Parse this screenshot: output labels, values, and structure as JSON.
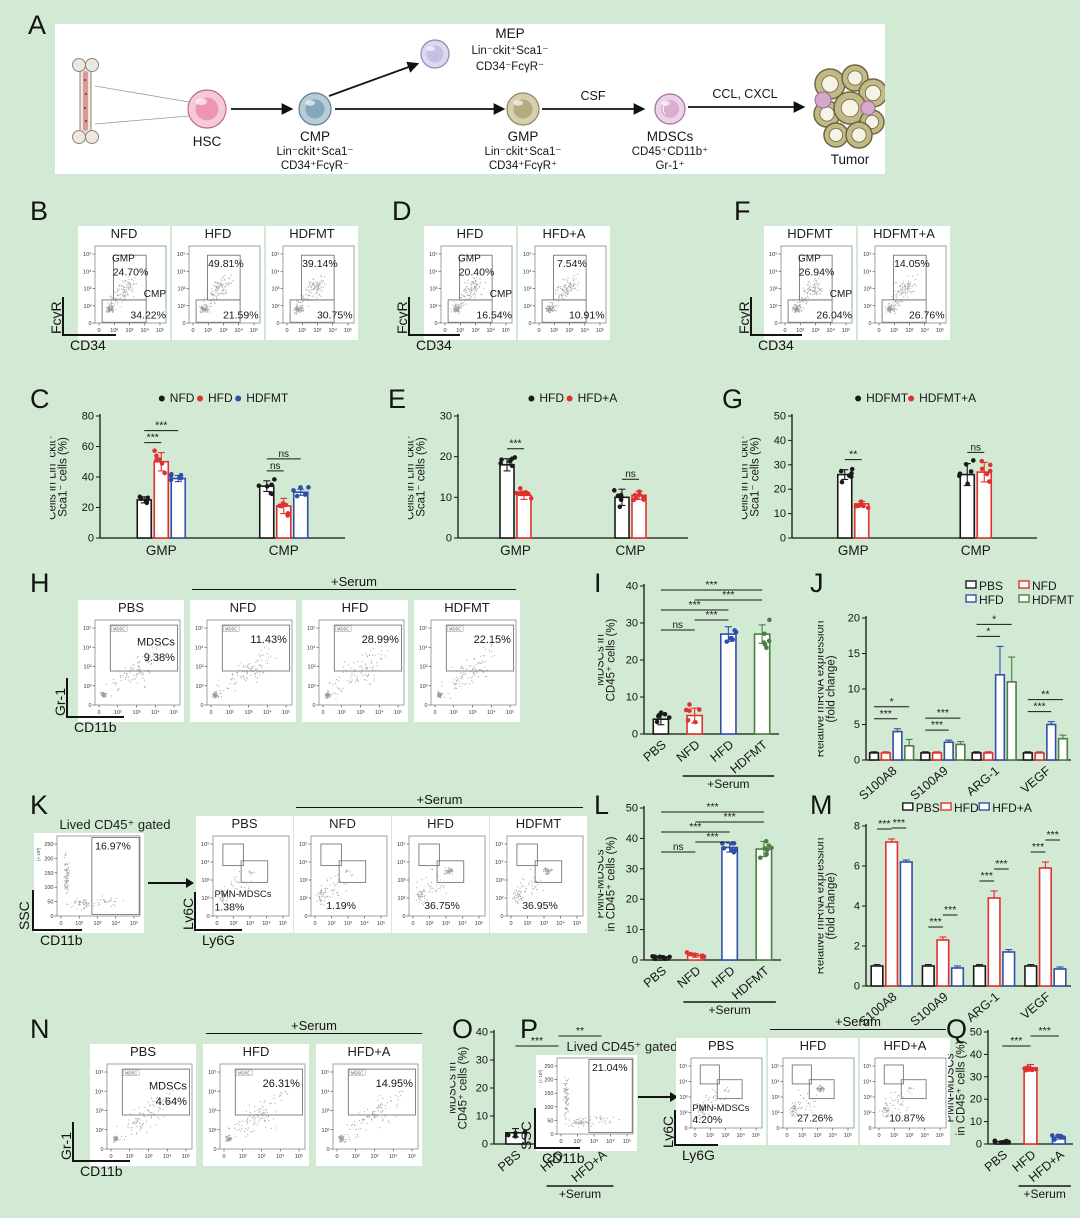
{
  "colors": {
    "black": "#1a1a1a",
    "red": "#e0312e",
    "blue": "#2f4faa",
    "green": "#4a8042"
  },
  "ticks_log": [
    "0",
    "10²",
    "10³",
    "10⁴",
    "10⁵"
  ],
  "ticks_ssc": [
    "0",
    "50",
    "100",
    "150",
    "200",
    "250"
  ],
  "panels": {
    "A": {
      "letter": "A",
      "hsc": "HSC",
      "cmp_name": "CMP",
      "cmp_sub1": "Lin⁻ckit⁺Sca1⁻",
      "cmp_sub2": "CD34⁺FcγR⁻",
      "mep_name": "MEP",
      "mep_sub1": "Lin⁻ckit⁺Sca1⁻",
      "mep_sub2": "CD34⁻FcγR⁻",
      "gmp_name": "GMP",
      "gmp_sub1": "Lin⁻ckit⁺Sca1⁻",
      "gmp_sub2": "CD34⁺FcγR⁺",
      "mdsc_name": "MDSCs",
      "mdsc_sub1": "CD45⁺CD11b⁺",
      "mdsc_sub2": "Gr-1⁺",
      "tumor": "Tumor",
      "csf": "CSF",
      "ccl": "CCL, CXCL"
    },
    "B": {
      "letter": "B",
      "ylabel": "FcγR",
      "xlabel": "CD34",
      "plots": [
        {
          "title": "NFD",
          "names": true,
          "g1": "GMP",
          "p1": "24.70%",
          "g2": "CMP",
          "p2": "34.22%"
        },
        {
          "title": "HFD",
          "p1": "49.81%",
          "p2": "21.59%"
        },
        {
          "title": "HDFMT",
          "p1": "39.14%",
          "p2": "30.75%"
        }
      ]
    },
    "C": {
      "letter": "C",
      "chart": {
        "type": "grouped",
        "ml": 50,
        "ylabel": [
          "Cells in Lin⁻ckit⁺",
          "Sca1⁻ cells (%)"
        ],
        "ylim": 80,
        "yticks": [
          0,
          20,
          40,
          60,
          80
        ],
        "categories": [
          "GMP",
          "CMP"
        ],
        "series": [
          {
            "name": "NFD",
            "color": "black",
            "values": [
              25,
              34
            ],
            "errors": [
              2,
              3.5
            ]
          },
          {
            "name": "HFD",
            "color": "red",
            "values": [
              50,
              21
            ],
            "errors": [
              6,
              5
            ]
          },
          {
            "name": "HDFMT",
            "color": "blue",
            "values": [
              39,
              30
            ],
            "errors": [
              2,
              2
            ]
          }
        ],
        "legend": "dot",
        "dots": 6,
        "sig": [
          {
            "cat": 0,
            "from": 0,
            "to": 1,
            "level": 0,
            "label": "***"
          },
          {
            "cat": 0,
            "from": 0,
            "to": 2,
            "level": 1,
            "label": "***"
          },
          {
            "cat": 1,
            "from": 0,
            "to": 1,
            "level": 0,
            "label": "ns"
          },
          {
            "cat": 1,
            "from": 0,
            "to": 2,
            "level": 1,
            "label": "ns"
          }
        ]
      }
    },
    "D": {
      "letter": "D",
      "ylabel": "FcγR",
      "xlabel": "CD34",
      "plots": [
        {
          "title": "HFD",
          "names": true,
          "g1": "GMP",
          "p1": "20.40%",
          "g2": "CMP",
          "p2": "16.54%"
        },
        {
          "title": "HFD+A",
          "p1": "7.54%",
          "p2": "10.91%"
        }
      ]
    },
    "E": {
      "letter": "E",
      "chart": {
        "type": "grouped",
        "ml": 50,
        "ylabel": [
          "Cells in Lin⁻ckit⁺",
          "Sca1⁻ cells (%)"
        ],
        "ylim": 30,
        "yticks": [
          0,
          10,
          20,
          30
        ],
        "categories": [
          "GMP",
          "CMP"
        ],
        "series": [
          {
            "name": "HFD",
            "color": "black",
            "values": [
              18,
              10
            ],
            "errors": [
              1.5,
              2
            ]
          },
          {
            "name": "HFD+A",
            "color": "red",
            "values": [
              10.5,
              10.5
            ],
            "errors": [
              1,
              1
            ]
          }
        ],
        "legend": "dot",
        "dots": 7,
        "sig": [
          {
            "cat": 0,
            "from": 0,
            "to": 1,
            "level": 0,
            "label": "***"
          },
          {
            "cat": 1,
            "from": 0,
            "to": 1,
            "level": 0,
            "label": "ns"
          }
        ]
      }
    },
    "F": {
      "letter": "F",
      "ylabel": "FcγR",
      "xlabel": "CD34",
      "plots": [
        {
          "title": "HDFMT",
          "names": true,
          "g1": "GMP",
          "p1": "26.94%",
          "g2": "CMP",
          "p2": "26.04%"
        },
        {
          "title": "HDFMT+A",
          "p1": "14.05%",
          "p2": "26.76%"
        }
      ]
    },
    "G": {
      "letter": "G",
      "chart": {
        "type": "grouped",
        "ml": 50,
        "ylabel": [
          "Cells in Lin⁻ckit⁺",
          "Sca1⁻ cells (%)"
        ],
        "ylim": 50,
        "yticks": [
          0,
          10,
          20,
          30,
          40,
          50
        ],
        "categories": [
          "GMP",
          "CMP"
        ],
        "series": [
          {
            "name": "HDFMT",
            "color": "black",
            "values": [
              26,
              26
            ],
            "errors": [
              2,
              4.5
            ]
          },
          {
            "name": "HDFMT+A",
            "color": "red",
            "values": [
              14,
              27
            ],
            "errors": [
              1,
              4
            ]
          }
        ],
        "legend": "dot",
        "dots": 6,
        "sig": [
          {
            "cat": 0,
            "from": 0,
            "to": 1,
            "level": 0,
            "label": "**"
          },
          {
            "cat": 1,
            "from": 0,
            "to": 1,
            "level": 0,
            "label": "ns"
          }
        ]
      }
    },
    "H": {
      "letter": "H",
      "serum": "+Serum",
      "ylabel": "Gr-1",
      "xlabel": "CD11b",
      "plots": [
        {
          "title": "PBS",
          "names": true,
          "name": "MDSCs",
          "tag": "MDSC",
          "pct": "9.38%"
        },
        {
          "title": "NFD",
          "tag": "MDSC",
          "pct": "11.43%"
        },
        {
          "title": "HFD",
          "tag": "MDSC",
          "pct": "28.99%"
        },
        {
          "title": "HDFMT",
          "tag": "MDSC",
          "pct": "22.15%"
        }
      ]
    },
    "I": {
      "letter": "I",
      "chart": {
        "type": "simple",
        "ml": 46,
        "ylabel": [
          "MDSCs in",
          "CD45⁺ cells (%)"
        ],
        "ylim": 40,
        "yticks": [
          0,
          10,
          20,
          30,
          40
        ],
        "categories": [
          "PBS",
          "NFD",
          "HFD",
          "HDFMT"
        ],
        "colors": [
          "black",
          "red",
          "blue",
          "green"
        ],
        "values": [
          4,
          5,
          27,
          27
        ],
        "errors": [
          1.5,
          2,
          2,
          2.5
        ],
        "dots": 6,
        "rotate": true,
        "serum": {
          "label": "+Serum",
          "from": 1,
          "to": 3
        },
        "sig": [
          {
            "from": 0,
            "to": 1,
            "level": 0,
            "label": "ns"
          },
          {
            "from": 1,
            "to": 2,
            "level": 1,
            "label": "***"
          },
          {
            "from": 0,
            "to": 2,
            "level": 2,
            "label": "***"
          },
          {
            "from": 1,
            "to": 3,
            "level": 3,
            "label": "***"
          },
          {
            "from": 0,
            "to": 3,
            "level": 4,
            "label": "***"
          }
        ]
      }
    },
    "J": {
      "letter": "J",
      "chart": {
        "type": "grouped",
        "ml": 48,
        "ylabel": [
          "Relative mRNA expression",
          "(fold change)"
        ],
        "ylim": 20,
        "yticks": [
          0,
          5,
          10,
          15,
          20
        ],
        "categories": [
          "S100A8",
          "S100A9",
          "ARG-1",
          "VEGF"
        ],
        "rotate": true,
        "series": [
          {
            "name": "PBS",
            "color": "black",
            "values": [
              1,
              1,
              1,
              1
            ],
            "errors": [
              0.15,
              0.15,
              0.15,
              0.15
            ]
          },
          {
            "name": "NFD",
            "color": "red",
            "values": [
              1,
              1,
              1,
              1
            ],
            "errors": [
              0.15,
              0.15,
              0.15,
              0.15
            ]
          },
          {
            "name": "HFD",
            "color": "blue",
            "values": [
              4,
              2.5,
              12,
              5
            ],
            "errors": [
              0.4,
              0.3,
              4,
              0.4
            ]
          },
          {
            "name": "HDFMT",
            "color": "green",
            "values": [
              2,
              2.2,
              11,
              3
            ],
            "errors": [
              0.9,
              0.4,
              3.5,
              0.5
            ]
          }
        ],
        "legend": "rect",
        "legend_cols": 2,
        "legend_align": "right",
        "dots": 0,
        "sig": [
          {
            "cat": 0,
            "from": 0,
            "to": 2,
            "level": 0,
            "label": "***"
          },
          {
            "cat": 0,
            "from": 0,
            "to": 3,
            "level": 1,
            "label": "*"
          },
          {
            "cat": 1,
            "from": 0,
            "to": 2,
            "level": 0,
            "label": "***"
          },
          {
            "cat": 1,
            "from": 0,
            "to": 3,
            "level": 1,
            "label": "***"
          },
          {
            "cat": 2,
            "from": 0,
            "to": 2,
            "level": 0,
            "label": "*"
          },
          {
            "cat": 2,
            "from": 0,
            "to": 3,
            "level": 1,
            "label": "*"
          },
          {
            "cat": 3,
            "from": 0,
            "to": 2,
            "level": 0,
            "label": "***"
          },
          {
            "cat": 3,
            "from": 0,
            "to": 3,
            "level": 1,
            "label": "**"
          }
        ]
      }
    },
    "K": {
      "letter": "K",
      "serum": "+Serum",
      "gate_title": "Lived CD45⁺ gated",
      "ssc_ylabel": "SSC",
      "ssc_xlabel": "CD11b",
      "ylabel": "Ly6C",
      "xlabel": "Ly6G",
      "lived": {
        "pct": "16.97%",
        "unit": "(× 10³)"
      },
      "plots": [
        {
          "title": "PBS",
          "names": true,
          "name": "PMN-MDSCs",
          "pct": "1.38%"
        },
        {
          "title": "NFD",
          "pct": "1.19%"
        },
        {
          "title": "HFD",
          "pct": "36.75%"
        },
        {
          "title": "HDFMT",
          "pct": "36.95%"
        }
      ]
    },
    "L": {
      "letter": "L",
      "chart": {
        "type": "simple",
        "ml": 46,
        "ylabel": [
          "PMN-MDSCs",
          "in CD45⁺ cells (%)"
        ],
        "ylim": 50,
        "yticks": [
          0,
          10,
          20,
          30,
          40,
          50
        ],
        "categories": [
          "PBS",
          "NFD",
          "HFD",
          "HDFMT"
        ],
        "colors": [
          "black",
          "red",
          "blue",
          "green"
        ],
        "values": [
          1,
          1.5,
          37,
          36.5
        ],
        "errors": [
          0.4,
          0.6,
          1.5,
          2.5
        ],
        "dots": 7,
        "rotate": true,
        "serum": {
          "label": "+Serum",
          "from": 1,
          "to": 3
        },
        "sig": [
          {
            "from": 0,
            "to": 1,
            "level": 0,
            "label": "ns"
          },
          {
            "from": 1,
            "to": 2,
            "level": 1,
            "label": "***"
          },
          {
            "from": 0,
            "to": 2,
            "level": 2,
            "label": "***"
          },
          {
            "from": 1,
            "to": 3,
            "level": 3,
            "label": "***"
          },
          {
            "from": 0,
            "to": 3,
            "level": 4,
            "label": "***"
          }
        ]
      }
    },
    "M": {
      "letter": "M",
      "chart": {
        "type": "grouped",
        "ml": 48,
        "ylabel": [
          "Relative mRNA expression",
          "(fold change)"
        ],
        "ylim": 8,
        "yticks": [
          0,
          2,
          4,
          6,
          8
        ],
        "categories": [
          "S100A8",
          "S100A9",
          "ARG-1",
          "VEGF"
        ],
        "rotate": true,
        "series": [
          {
            "name": "PBS",
            "color": "black",
            "values": [
              1,
              1,
              1,
              1
            ],
            "errors": [
              0.07,
              0.07,
              0.07,
              0.07
            ]
          },
          {
            "name": "HFD",
            "color": "red",
            "values": [
              7.2,
              2.3,
              4.4,
              5.9
            ],
            "errors": [
              0.15,
              0.15,
              0.35,
              0.3
            ]
          },
          {
            "name": "HFD+A",
            "color": "blue",
            "values": [
              6.2,
              0.9,
              1.7,
              0.85
            ],
            "errors": [
              0.1,
              0.1,
              0.12,
              0.1
            ]
          }
        ],
        "legend": "rect",
        "legend_cols": 3,
        "dots": 0,
        "sig": [
          {
            "cat": 0,
            "from": 0,
            "to": 1,
            "level": 0,
            "label": "***"
          },
          {
            "cat": 0,
            "from": 1,
            "to": 2,
            "level": 1,
            "label": "***"
          },
          {
            "cat": 1,
            "from": 0,
            "to": 1,
            "level": 0,
            "label": "***"
          },
          {
            "cat": 1,
            "from": 1,
            "to": 2,
            "level": 1,
            "label": "***"
          },
          {
            "cat": 2,
            "from": 0,
            "to": 1,
            "level": 0,
            "label": "***"
          },
          {
            "cat": 2,
            "from": 1,
            "to": 2,
            "level": 1,
            "label": "***"
          },
          {
            "cat": 3,
            "from": 0,
            "to": 1,
            "level": 0,
            "label": "***"
          },
          {
            "cat": 3,
            "from": 1,
            "to": 2,
            "level": 1,
            "label": "***"
          }
        ]
      }
    },
    "N": {
      "letter": "N",
      "serum": "+Serum",
      "ylabel": "Gr-1",
      "xlabel": "CD11b",
      "plots": [
        {
          "title": "PBS",
          "names": true,
          "name": "MDSCs",
          "tag": "MDSC",
          "pct": "4.64%"
        },
        {
          "title": "HFD",
          "tag": "MDSC",
          "pct": "26.31%"
        },
        {
          "title": "HFD+A",
          "tag": "MDSC",
          "pct": "14.95%"
        }
      ]
    },
    "O": {
      "letter": "O",
      "chart": {
        "type": "simple",
        "ml": 44,
        "ylabel": [
          "MDSCs in",
          "CD45⁺ cells (%)"
        ],
        "ylim": 40,
        "yticks": [
          0,
          10,
          20,
          30,
          40
        ],
        "categories": [
          "PBS",
          "HFD",
          "HFD+A"
        ],
        "colors": [
          "black",
          "red",
          "blue"
        ],
        "values": [
          4,
          26,
          11
        ],
        "errors": [
          1.5,
          1.5,
          2.5
        ],
        "dots": 4,
        "rotate": true,
        "serum": {
          "label": "+Serum",
          "from": 1,
          "to": 2
        },
        "sig": [
          {
            "from": 0,
            "to": 1,
            "level": 0,
            "label": "***"
          },
          {
            "from": 1,
            "to": 2,
            "level": 1,
            "label": "**"
          }
        ]
      }
    },
    "P": {
      "letter": "P",
      "serum": "+Serum",
      "gate_title": "Lived CD45⁺ gated",
      "ssc_ylabel": "SSC",
      "ssc_xlabel": "CD11b",
      "ylabel": "Ly6C",
      "xlabel": "Ly6G",
      "lived": {
        "pct": "21.04%",
        "unit": "(× 10³)"
      },
      "plots": [
        {
          "title": "PBS",
          "names": true,
          "name": "PMN-MDSCs",
          "pct": "4.20%"
        },
        {
          "title": "HFD",
          "pct": "27.26%"
        },
        {
          "title": "HFD+A",
          "pct": "10.87%"
        }
      ]
    },
    "Q": {
      "letter": "Q",
      "chart": {
        "type": "simple",
        "ml": 40,
        "ylabel": [
          "PMN-MDSCs",
          "in CD45⁺ cells (%)"
        ],
        "ylim": 50,
        "yticks": [
          0,
          10,
          20,
          30,
          40,
          50
        ],
        "categories": [
          "PBS",
          "HFD",
          "HFD+A"
        ],
        "colors": [
          "black",
          "red",
          "blue"
        ],
        "values": [
          1,
          34,
          3
        ],
        "errors": [
          0.3,
          1.5,
          0.8
        ],
        "dots": 7,
        "rotate": true,
        "serum": {
          "label": "+Serum",
          "from": 1,
          "to": 2
        },
        "sig": [
          {
            "from": 0,
            "to": 1,
            "level": 0,
            "label": "***"
          },
          {
            "from": 1,
            "to": 2,
            "level": 1,
            "label": "***"
          }
        ]
      }
    }
  }
}
